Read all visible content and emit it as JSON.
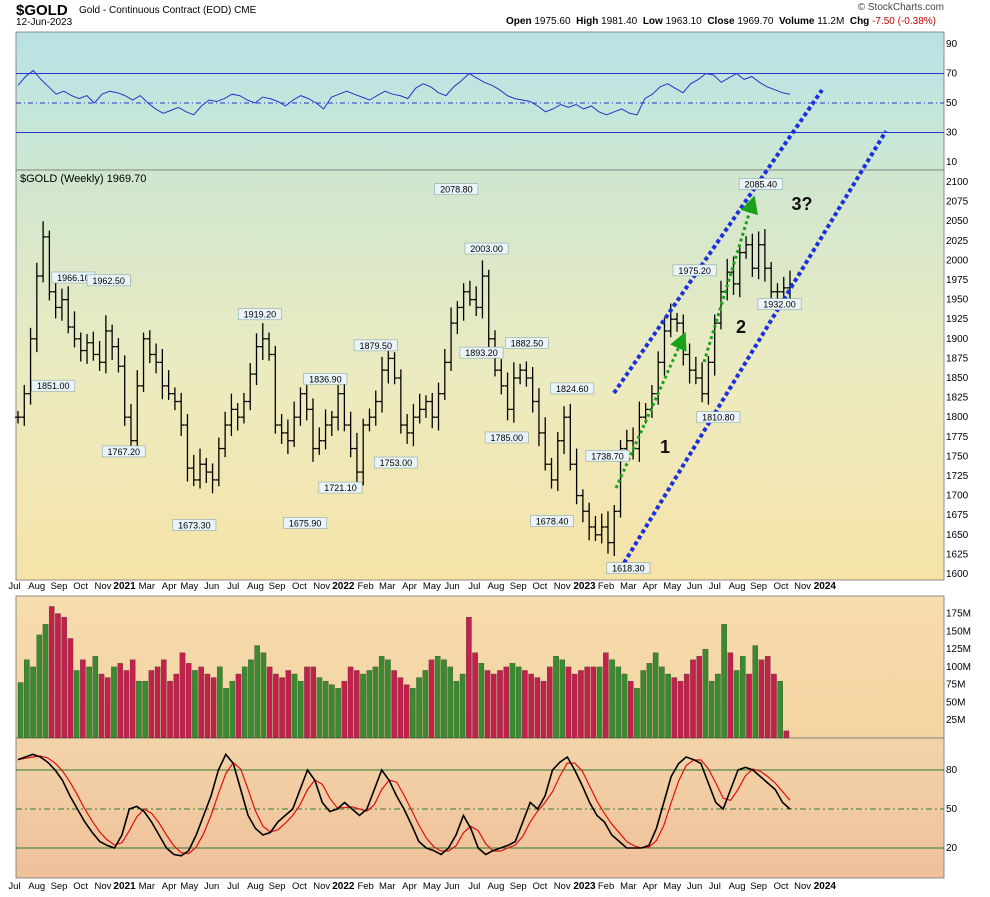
{
  "header": {
    "symbol": "$GOLD",
    "description": "Gold - Continuous Contract (EOD)",
    "exchange": "CME",
    "date": "12-Jun-2023",
    "brand": "© StockCharts.com",
    "open_label": "Open",
    "open": "1975.60",
    "high_label": "High",
    "high": "1981.40",
    "low_label": "Low",
    "low": "1963.10",
    "close_label": "Close",
    "close": "1969.70",
    "volume_label": "Volume",
    "volume": "11.2M",
    "chg_label": "Chg",
    "chg": "-7.50 (-0.38%)"
  },
  "colors": {
    "up": "#3a8a2e",
    "down": "#c4204c",
    "channel": "#1a2fe0",
    "arrow": "#1aa31a",
    "rsi": "#2a34c8",
    "stoch_k": "#000000",
    "stoch_d": "#e01010"
  },
  "chart_data": [
    {
      "type": "line",
      "panel": "rsi",
      "yticks": [
        10,
        30,
        50,
        70,
        90
      ],
      "levels": [
        30,
        50,
        70
      ],
      "ylim": [
        0,
        100
      ],
      "values": [
        62,
        68,
        72,
        66,
        61,
        56,
        58,
        55,
        53,
        55,
        50,
        56,
        58,
        57,
        55,
        52,
        55,
        50,
        46,
        43,
        45,
        47,
        44,
        42,
        48,
        52,
        51,
        53,
        56,
        55,
        52,
        50,
        54,
        53,
        51,
        48,
        52,
        55,
        53,
        50,
        46,
        54,
        56,
        58,
        56,
        54,
        52,
        55,
        58,
        56,
        55,
        53,
        60,
        63,
        61,
        57,
        55,
        61,
        65,
        70,
        67,
        64,
        62,
        59,
        55,
        53,
        52,
        51,
        48,
        44,
        46,
        49,
        47,
        49,
        46,
        48,
        44,
        42,
        44,
        46,
        43,
        42,
        53,
        56,
        61,
        63,
        60,
        57,
        63,
        66,
        70,
        69,
        64,
        67,
        70,
        66,
        68,
        64,
        61,
        59,
        57,
        56
      ]
    },
    {
      "type": "ohlc",
      "panel": "price",
      "title": "$GOLD (Weekly) 1969.70",
      "ylim": [
        1600,
        2100
      ],
      "yticks": [
        1600,
        1625,
        1650,
        1675,
        1700,
        1725,
        1750,
        1775,
        1800,
        1825,
        1850,
        1875,
        1900,
        1925,
        1950,
        1975,
        2000,
        2025,
        2050,
        2075,
        2100
      ],
      "x_labels": [
        "Jul",
        "Aug",
        "Sep",
        "Oct",
        "Nov",
        "2021",
        "Mar",
        "Apr",
        "May",
        "Jun",
        "Jul",
        "Aug",
        "Sep",
        "Oct",
        "Nov",
        "2022",
        "Feb",
        "Mar",
        "Apr",
        "May",
        "Jun",
        "Jul",
        "Aug",
        "Sep",
        "Oct",
        "Nov",
        "2023",
        "Feb",
        "Mar",
        "Apr",
        "May",
        "Jun",
        "Jul",
        "Aug",
        "Sep",
        "Oct",
        "Nov",
        "2024"
      ],
      "closes": [
        1800,
        1830,
        1900,
        1980,
        2030,
        1960,
        1940,
        1950,
        1915,
        1900,
        1885,
        1895,
        1880,
        1870,
        1910,
        1890,
        1865,
        1800,
        1770,
        1840,
        1900,
        1880,
        1870,
        1840,
        1830,
        1820,
        1790,
        1735,
        1720,
        1740,
        1730,
        1720,
        1760,
        1790,
        1810,
        1800,
        1820,
        1855,
        1890,
        1900,
        1880,
        1790,
        1780,
        1770,
        1800,
        1830,
        1810,
        1760,
        1770,
        1790,
        1800,
        1830,
        1790,
        1760,
        1730,
        1790,
        1800,
        1820,
        1860,
        1875,
        1850,
        1790,
        1780,
        1800,
        1810,
        1820,
        1800,
        1830,
        1870,
        1920,
        1940,
        1960,
        1950,
        1940,
        1980,
        1900,
        1860,
        1840,
        1810,
        1850,
        1860,
        1850,
        1820,
        1780,
        1740,
        1720,
        1770,
        1800,
        1740,
        1700,
        1680,
        1660,
        1650,
        1660,
        1640,
        1680,
        1760,
        1770,
        1760,
        1800,
        1810,
        1830,
        1870,
        1910,
        1925,
        1920,
        1880,
        1860,
        1850,
        1830,
        1870,
        1920,
        1960,
        1985,
        1970,
        2010,
        2020,
        1990,
        2020,
        1990,
        1960,
        1960,
        1965,
        1970
      ],
      "labels": [
        {
          "text": "2078.80",
          "date": "2022-03-07",
          "value": 2078.8
        },
        {
          "text": "2003.00",
          "date": "2022-04-18",
          "value": 2003.0
        },
        {
          "text": "1966.10",
          "date": "2020-09-21",
          "value": 1966.1
        },
        {
          "text": "1962.50",
          "date": "2020-11-09",
          "value": 1962.5
        },
        {
          "text": "1851.00",
          "date": "2020-08-24",
          "value": 1851.0
        },
        {
          "text": "1767.20",
          "date": "2020-11-30",
          "value": 1767.2
        },
        {
          "text": "1673.30",
          "date": "2021-03-08",
          "value": 1673.3
        },
        {
          "text": "1919.20",
          "date": "2021-06-07",
          "value": 1919.2
        },
        {
          "text": "1675.90",
          "date": "2021-08-09",
          "value": 1675.9
        },
        {
          "text": "1836.90",
          "date": "2021-09-06",
          "value": 1836.9
        },
        {
          "text": "1721.10",
          "date": "2021-09-27",
          "value": 1721.1
        },
        {
          "text": "1879.50",
          "date": "2021-11-15",
          "value": 1879.5
        },
        {
          "text": "1753.00",
          "date": "2021-12-13",
          "value": 1753.0
        },
        {
          "text": "1893.20",
          "date": "2022-04-11",
          "value": 1893.2
        },
        {
          "text": "1882.50",
          "date": "2022-06-13",
          "value": 1882.5
        },
        {
          "text": "1785.00",
          "date": "2022-05-16",
          "value": 1785.0
        },
        {
          "text": "1824.60",
          "date": "2022-08-15",
          "value": 1824.6
        },
        {
          "text": "1678.40",
          "date": "2022-07-18",
          "value": 1678.4
        },
        {
          "text": "1738.70",
          "date": "2022-10-03",
          "value": 1738.7
        },
        {
          "text": "1618.30",
          "date": "2022-11-01",
          "value": 1618.3
        },
        {
          "text": "1975.20",
          "date": "2023-02-01",
          "value": 1975.2
        },
        {
          "text": "1810.80",
          "date": "2023-03-06",
          "value": 1810.8
        },
        {
          "text": "2085.40",
          "date": "2023-05-04",
          "value": 2085.4
        },
        {
          "text": "1932.00",
          "date": "2023-05-30",
          "value": 1932.0
        }
      ],
      "wave_labels": [
        "1",
        "2",
        "3?"
      ]
    },
    {
      "type": "bar",
      "panel": "volume",
      "ylim": [
        0,
        180
      ],
      "yticks": [
        "25M",
        "50M",
        "75M",
        "100M",
        "125M",
        "150M",
        "175M"
      ],
      "values": [
        78,
        110,
        100,
        145,
        160,
        185,
        175,
        170,
        140,
        95,
        110,
        100,
        115,
        90,
        85,
        100,
        105,
        95,
        110,
        80,
        80,
        95,
        100,
        110,
        80,
        90,
        120,
        105,
        95,
        100,
        90,
        85,
        100,
        70,
        80,
        90,
        100,
        110,
        130,
        120,
        100,
        90,
        85,
        95,
        90,
        80,
        100,
        100,
        85,
        80,
        75,
        70,
        80,
        100,
        95,
        90,
        95,
        100,
        115,
        110,
        95,
        85,
        75,
        70,
        85,
        95,
        110,
        115,
        110,
        100,
        80,
        90,
        170,
        120,
        105,
        95,
        90,
        95,
        100,
        105,
        100,
        95,
        90,
        85,
        80,
        100,
        115,
        110,
        100,
        90,
        95,
        100,
        100,
        100,
        120,
        110,
        100,
        90,
        80,
        70,
        95,
        105,
        120,
        100,
        90,
        85,
        80,
        90,
        110,
        115,
        125,
        80,
        90,
        160,
        120,
        95,
        115,
        90,
        130,
        110,
        115,
        90,
        80,
        10
      ],
      "up": [
        true,
        true,
        true,
        true,
        true,
        false,
        false,
        false,
        false,
        true,
        false,
        true,
        true,
        false,
        false,
        true,
        false,
        false,
        false,
        true,
        true,
        false,
        false,
        false,
        false,
        false,
        false,
        false,
        true,
        false,
        false,
        false,
        true,
        true,
        true,
        false,
        true,
        true,
        true,
        true,
        false,
        false,
        false,
        false,
        true,
        true,
        false,
        false,
        true,
        true,
        true,
        true,
        false,
        false,
        false,
        true,
        true,
        true,
        true,
        true,
        false,
        false,
        false,
        true,
        true,
        true,
        false,
        true,
        true,
        true,
        true,
        true,
        false,
        false,
        true,
        false,
        false,
        false,
        false,
        true,
        true,
        false,
        false,
        false,
        false,
        false,
        true,
        true,
        false,
        false,
        false,
        false,
        false,
        true,
        false,
        true,
        true,
        true,
        false,
        true,
        true,
        true,
        true,
        true,
        true,
        false,
        false,
        false,
        false,
        false,
        true,
        true,
        true,
        true,
        false,
        true,
        true,
        false,
        true,
        false,
        false,
        false,
        true,
        false
      ]
    },
    {
      "type": "line",
      "panel": "stochastic",
      "yticks": [
        20,
        50,
        80
      ],
      "levels": [
        20,
        50,
        80
      ],
      "ylim": [
        0,
        100
      ],
      "k": [
        88,
        90,
        92,
        90,
        86,
        80,
        72,
        60,
        50,
        40,
        32,
        25,
        22,
        20,
        30,
        50,
        52,
        48,
        40,
        30,
        20,
        15,
        14,
        18,
        30,
        45,
        60,
        80,
        92,
        85,
        65,
        45,
        35,
        30,
        32,
        40,
        45,
        50,
        65,
        80,
        72,
        55,
        48,
        50,
        55,
        50,
        45,
        50,
        65,
        80,
        72,
        60,
        50,
        38,
        25,
        20,
        18,
        15,
        20,
        30,
        45,
        35,
        20,
        15,
        18,
        20,
        22,
        25,
        40,
        55,
        50,
        60,
        80,
        86,
        90,
        80,
        68,
        55,
        45,
        40,
        30,
        25,
        20,
        20,
        20,
        22,
        35,
        55,
        75,
        85,
        90,
        88,
        85,
        70,
        55,
        50,
        65,
        80,
        82,
        80,
        75,
        70,
        65,
        55,
        50
      ]
    }
  ]
}
